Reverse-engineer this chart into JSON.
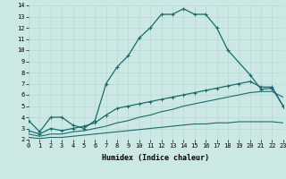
{
  "bg_color": "#cce8e5",
  "grid_color": "#b8d8d4",
  "line_color": "#1a6b6b",
  "line1_x": [
    0,
    1,
    2,
    3,
    4,
    5,
    6,
    7,
    8,
    9,
    10,
    11,
    12,
    13,
    14,
    15,
    16,
    17,
    18,
    20,
    21,
    22,
    23
  ],
  "line1_y": [
    3.7,
    2.7,
    4.0,
    4.0,
    3.3,
    3.0,
    3.7,
    7.0,
    8.5,
    9.5,
    11.1,
    12.0,
    13.2,
    13.2,
    13.7,
    13.2,
    13.2,
    12.0,
    10.0,
    7.8,
    6.5,
    6.6,
    5.0
  ],
  "line2_x": [
    0,
    1,
    2,
    3,
    4,
    5,
    6,
    7,
    8,
    9,
    10,
    11,
    12,
    13,
    14,
    15,
    16,
    17,
    18,
    19,
    20,
    21,
    22,
    23
  ],
  "line2_y": [
    2.8,
    2.5,
    3.0,
    2.8,
    3.0,
    3.2,
    3.5,
    4.2,
    4.8,
    5.0,
    5.2,
    5.4,
    5.6,
    5.8,
    6.0,
    6.2,
    6.4,
    6.6,
    6.8,
    7.0,
    7.2,
    6.7,
    6.7,
    5.0
  ],
  "line3_x": [
    0,
    1,
    2,
    3,
    4,
    5,
    6,
    7,
    8,
    9,
    10,
    11,
    12,
    13,
    14,
    15,
    16,
    17,
    18,
    19,
    20,
    21,
    22,
    23
  ],
  "line3_y": [
    2.5,
    2.3,
    2.5,
    2.5,
    2.7,
    2.8,
    3.0,
    3.2,
    3.5,
    3.7,
    4.0,
    4.2,
    4.5,
    4.7,
    5.0,
    5.2,
    5.4,
    5.6,
    5.8,
    6.0,
    6.2,
    6.3,
    6.3,
    5.8
  ],
  "line4_x": [
    0,
    1,
    2,
    3,
    4,
    5,
    6,
    7,
    8,
    9,
    10,
    11,
    12,
    13,
    14,
    15,
    16,
    17,
    18,
    19,
    20,
    21,
    22,
    23
  ],
  "line4_y": [
    2.2,
    2.1,
    2.2,
    2.2,
    2.3,
    2.4,
    2.5,
    2.6,
    2.7,
    2.8,
    2.9,
    3.0,
    3.1,
    3.2,
    3.3,
    3.4,
    3.4,
    3.5,
    3.5,
    3.6,
    3.6,
    3.6,
    3.6,
    3.5
  ],
  "xlabel": "Humidex (Indice chaleur)",
  "xlim": [
    0,
    23
  ],
  "ylim": [
    2,
    14
  ],
  "yticks": [
    2,
    3,
    4,
    5,
    6,
    7,
    8,
    9,
    10,
    11,
    12,
    13,
    14
  ],
  "xticks": [
    0,
    1,
    2,
    3,
    4,
    5,
    6,
    7,
    8,
    9,
    10,
    11,
    12,
    13,
    14,
    15,
    16,
    17,
    18,
    19,
    20,
    21,
    22,
    23
  ]
}
